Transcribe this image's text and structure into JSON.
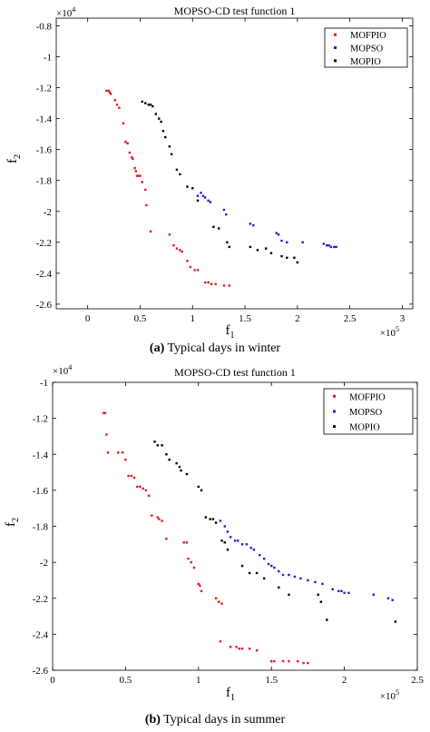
{
  "figure": {
    "colors": {
      "MOFPIO": "#e31a1c",
      "MOPSO": "#1f1fd6",
      "MOPIO": "#000000"
    }
  },
  "chart_data": [
    {
      "type": "scatter",
      "title": "MOPSO-CD test function 1",
      "xlabel": "f",
      "xlabel_sub": "1",
      "ylabel": "f",
      "ylabel_sub": "2",
      "x_multiplier": "×10",
      "x_multiplier_exp": "5",
      "y_multiplier": "×10",
      "y_multiplier_exp": "4",
      "xlim": [
        -0.3,
        3.1
      ],
      "ylim": [
        -2.63,
        -0.75
      ],
      "xticks": [
        0,
        0.5,
        1,
        1.5,
        2,
        2.5,
        3
      ],
      "xtick_labels": [
        "0",
        "0.5",
        "1",
        "1.5",
        "2",
        "2.5",
        "3"
      ],
      "yticks": [
        -0.8,
        -1,
        -1.2,
        -1.4,
        -1.6,
        -1.8,
        -2,
        -2.2,
        -2.4,
        -2.6
      ],
      "ytick_labels": [
        "-0.8",
        "-1",
        "-1.2",
        "-1.4",
        "-1.6",
        "-1.8",
        "-2",
        "-2.2",
        "-2.4",
        "-2.6"
      ],
      "grid": false,
      "legend_position": "top-right",
      "caption_letter": "(a)",
      "caption_text": " Typical days in winter",
      "series": [
        {
          "name": "MOFPIO",
          "points": [
            [
              0.18,
              -1.22
            ],
            [
              0.2,
              -1.22
            ],
            [
              0.21,
              -1.23
            ],
            [
              0.22,
              -1.24
            ],
            [
              0.26,
              -1.28
            ],
            [
              0.28,
              -1.31
            ],
            [
              0.3,
              -1.33
            ],
            [
              0.34,
              -1.43
            ],
            [
              0.36,
              -1.55
            ],
            [
              0.38,
              -1.56
            ],
            [
              0.4,
              -1.62
            ],
            [
              0.42,
              -1.65
            ],
            [
              0.43,
              -1.66
            ],
            [
              0.45,
              -1.72
            ],
            [
              0.46,
              -1.74
            ],
            [
              0.47,
              -1.77
            ],
            [
              0.48,
              -1.77
            ],
            [
              0.5,
              -1.77
            ],
            [
              0.52,
              -1.81
            ],
            [
              0.55,
              -1.86
            ],
            [
              0.56,
              -1.96
            ],
            [
              0.6,
              -2.13
            ],
            [
              0.78,
              -2.15
            ],
            [
              0.82,
              -2.22
            ],
            [
              0.85,
              -2.24
            ],
            [
              0.88,
              -2.25
            ],
            [
              0.9,
              -2.26
            ],
            [
              0.95,
              -2.32
            ],
            [
              0.98,
              -2.36
            ],
            [
              1.02,
              -2.38
            ],
            [
              1.05,
              -2.38
            ],
            [
              1.12,
              -2.46
            ],
            [
              1.15,
              -2.46
            ],
            [
              1.18,
              -2.47
            ],
            [
              1.22,
              -2.47
            ],
            [
              1.3,
              -2.48
            ],
            [
              1.35,
              -2.48
            ]
          ]
        },
        {
          "name": "MOPSO",
          "points": [
            [
              1.05,
              -1.9
            ],
            [
              1.08,
              -1.88
            ],
            [
              1.1,
              -1.9
            ],
            [
              1.12,
              -1.91
            ],
            [
              1.15,
              -1.93
            ],
            [
              1.17,
              -1.94
            ],
            [
              1.3,
              -1.99
            ],
            [
              1.32,
              -2.02
            ],
            [
              1.55,
              -2.08
            ],
            [
              1.58,
              -2.09
            ],
            [
              1.8,
              -2.14
            ],
            [
              1.82,
              -2.15
            ],
            [
              1.85,
              -2.19
            ],
            [
              1.9,
              -2.2
            ],
            [
              2.05,
              -2.2
            ],
            [
              2.25,
              -2.21
            ],
            [
              2.28,
              -2.22
            ],
            [
              2.3,
              -2.22
            ],
            [
              2.32,
              -2.23
            ],
            [
              2.35,
              -2.23
            ],
            [
              2.37,
              -2.23
            ]
          ]
        },
        {
          "name": "MOPIO",
          "points": [
            [
              0.52,
              -1.29
            ],
            [
              0.55,
              -1.3
            ],
            [
              0.58,
              -1.31
            ],
            [
              0.6,
              -1.31
            ],
            [
              0.62,
              -1.32
            ],
            [
              0.65,
              -1.37
            ],
            [
              0.68,
              -1.4
            ],
            [
              0.7,
              -1.42
            ],
            [
              0.72,
              -1.48
            ],
            [
              0.74,
              -1.52
            ],
            [
              0.78,
              -1.58
            ],
            [
              0.8,
              -1.63
            ],
            [
              0.85,
              -1.73
            ],
            [
              0.88,
              -1.76
            ],
            [
              0.95,
              -1.84
            ],
            [
              1.0,
              -1.85
            ],
            [
              1.05,
              -1.93
            ],
            [
              1.2,
              -2.1
            ],
            [
              1.25,
              -2.11
            ],
            [
              1.33,
              -2.2
            ],
            [
              1.35,
              -2.23
            ],
            [
              1.55,
              -2.23
            ],
            [
              1.62,
              -2.25
            ],
            [
              1.7,
              -2.24
            ],
            [
              1.75,
              -2.27
            ],
            [
              1.85,
              -2.29
            ],
            [
              1.9,
              -2.3
            ],
            [
              1.97,
              -2.3
            ],
            [
              2.0,
              -2.33
            ]
          ]
        }
      ]
    },
    {
      "type": "scatter",
      "title": "MOPSO-CD test function 1",
      "xlabel": "f",
      "xlabel_sub": "1",
      "ylabel": "f",
      "ylabel_sub": "2",
      "x_multiplier": "×10",
      "x_multiplier_exp": "5",
      "y_multiplier": "×10",
      "y_multiplier_exp": "4",
      "xlim": [
        0,
        2.5
      ],
      "ylim": [
        -2.6,
        -1.0
      ],
      "xticks": [
        0,
        0.5,
        1,
        1.5,
        2,
        2.5
      ],
      "xtick_labels": [
        "0",
        "0.5",
        "1",
        "1.5",
        "2",
        "2.5"
      ],
      "yticks": [
        -1,
        -1.2,
        -1.4,
        -1.6,
        -1.8,
        -2,
        -2.2,
        -2.4,
        -2.6
      ],
      "ytick_labels": [
        "-1",
        "-1.2",
        "-1.4",
        "-1.6",
        "-1.8",
        "-2",
        "-2.2",
        "-2.4",
        "-2.6"
      ],
      "grid": false,
      "legend_position": "top-right",
      "caption_letter": "(b)",
      "caption_text": " Typical days in summer",
      "series": [
        {
          "name": "MOFPIO",
          "points": [
            [
              0.35,
              -1.17
            ],
            [
              0.36,
              -1.17
            ],
            [
              0.37,
              -1.29
            ],
            [
              0.38,
              -1.39
            ],
            [
              0.45,
              -1.39
            ],
            [
              0.48,
              -1.39
            ],
            [
              0.5,
              -1.43
            ],
            [
              0.52,
              -1.52
            ],
            [
              0.54,
              -1.52
            ],
            [
              0.56,
              -1.53
            ],
            [
              0.58,
              -1.58
            ],
            [
              0.6,
              -1.58
            ],
            [
              0.62,
              -1.59
            ],
            [
              0.64,
              -1.6
            ],
            [
              0.66,
              -1.63
            ],
            [
              0.68,
              -1.74
            ],
            [
              0.72,
              -1.75
            ],
            [
              0.73,
              -1.76
            ],
            [
              0.75,
              -1.77
            ],
            [
              0.78,
              -1.87
            ],
            [
              0.9,
              -1.89
            ],
            [
              0.92,
              -1.89
            ],
            [
              0.93,
              -1.98
            ],
            [
              0.95,
              -2.0
            ],
            [
              0.97,
              -2.03
            ],
            [
              1.0,
              -2.12
            ],
            [
              1.01,
              -2.13
            ],
            [
              1.02,
              -2.16
            ],
            [
              1.12,
              -2.2
            ],
            [
              1.14,
              -2.22
            ],
            [
              1.16,
              -2.23
            ],
            [
              1.15,
              -2.44
            ],
            [
              1.22,
              -2.47
            ],
            [
              1.26,
              -2.47
            ],
            [
              1.28,
              -2.48
            ],
            [
              1.3,
              -2.48
            ],
            [
              1.35,
              -2.48
            ],
            [
              1.4,
              -2.49
            ],
            [
              1.5,
              -2.55
            ],
            [
              1.52,
              -2.55
            ],
            [
              1.58,
              -2.55
            ],
            [
              1.62,
              -2.55
            ],
            [
              1.68,
              -2.55
            ],
            [
              1.72,
              -2.56
            ],
            [
              1.75,
              -2.56
            ]
          ]
        },
        {
          "name": "MOPSO",
          "points": [
            [
              1.15,
              -1.77
            ],
            [
              1.18,
              -1.8
            ],
            [
              1.2,
              -1.83
            ],
            [
              1.22,
              -1.86
            ],
            [
              1.25,
              -1.88
            ],
            [
              1.27,
              -1.88
            ],
            [
              1.3,
              -1.9
            ],
            [
              1.33,
              -1.9
            ],
            [
              1.36,
              -1.92
            ],
            [
              1.38,
              -1.93
            ],
            [
              1.42,
              -1.96
            ],
            [
              1.45,
              -1.98
            ],
            [
              1.48,
              -2.01
            ],
            [
              1.5,
              -2.02
            ],
            [
              1.52,
              -2.03
            ],
            [
              1.55,
              -2.05
            ],
            [
              1.58,
              -2.07
            ],
            [
              1.62,
              -2.07
            ],
            [
              1.66,
              -2.08
            ],
            [
              1.7,
              -2.09
            ],
            [
              1.75,
              -2.1
            ],
            [
              1.8,
              -2.11
            ],
            [
              1.85,
              -2.12
            ],
            [
              1.92,
              -2.15
            ],
            [
              1.96,
              -2.16
            ],
            [
              1.98,
              -2.16
            ],
            [
              2.0,
              -2.17
            ],
            [
              2.03,
              -2.17
            ],
            [
              2.2,
              -2.18
            ],
            [
              2.3,
              -2.2
            ],
            [
              2.33,
              -2.21
            ]
          ]
        },
        {
          "name": "MOPIO",
          "points": [
            [
              0.7,
              -1.33
            ],
            [
              0.72,
              -1.35
            ],
            [
              0.75,
              -1.35
            ],
            [
              0.78,
              -1.4
            ],
            [
              0.8,
              -1.43
            ],
            [
              0.85,
              -1.45
            ],
            [
              0.87,
              -1.47
            ],
            [
              0.88,
              -1.49
            ],
            [
              0.92,
              -1.51
            ],
            [
              1.0,
              -1.58
            ],
            [
              1.02,
              -1.6
            ],
            [
              1.05,
              -1.75
            ],
            [
              1.08,
              -1.76
            ],
            [
              1.1,
              -1.76
            ],
            [
              1.12,
              -1.78
            ],
            [
              1.16,
              -1.88
            ],
            [
              1.18,
              -1.89
            ],
            [
              1.2,
              -1.93
            ],
            [
              1.3,
              -2.02
            ],
            [
              1.35,
              -2.06
            ],
            [
              1.4,
              -2.06
            ],
            [
              1.45,
              -2.09
            ],
            [
              1.55,
              -2.14
            ],
            [
              1.62,
              -2.18
            ],
            [
              1.82,
              -2.18
            ],
            [
              1.84,
              -2.22
            ],
            [
              1.88,
              -2.32
            ],
            [
              2.35,
              -2.33
            ]
          ]
        }
      ]
    }
  ]
}
